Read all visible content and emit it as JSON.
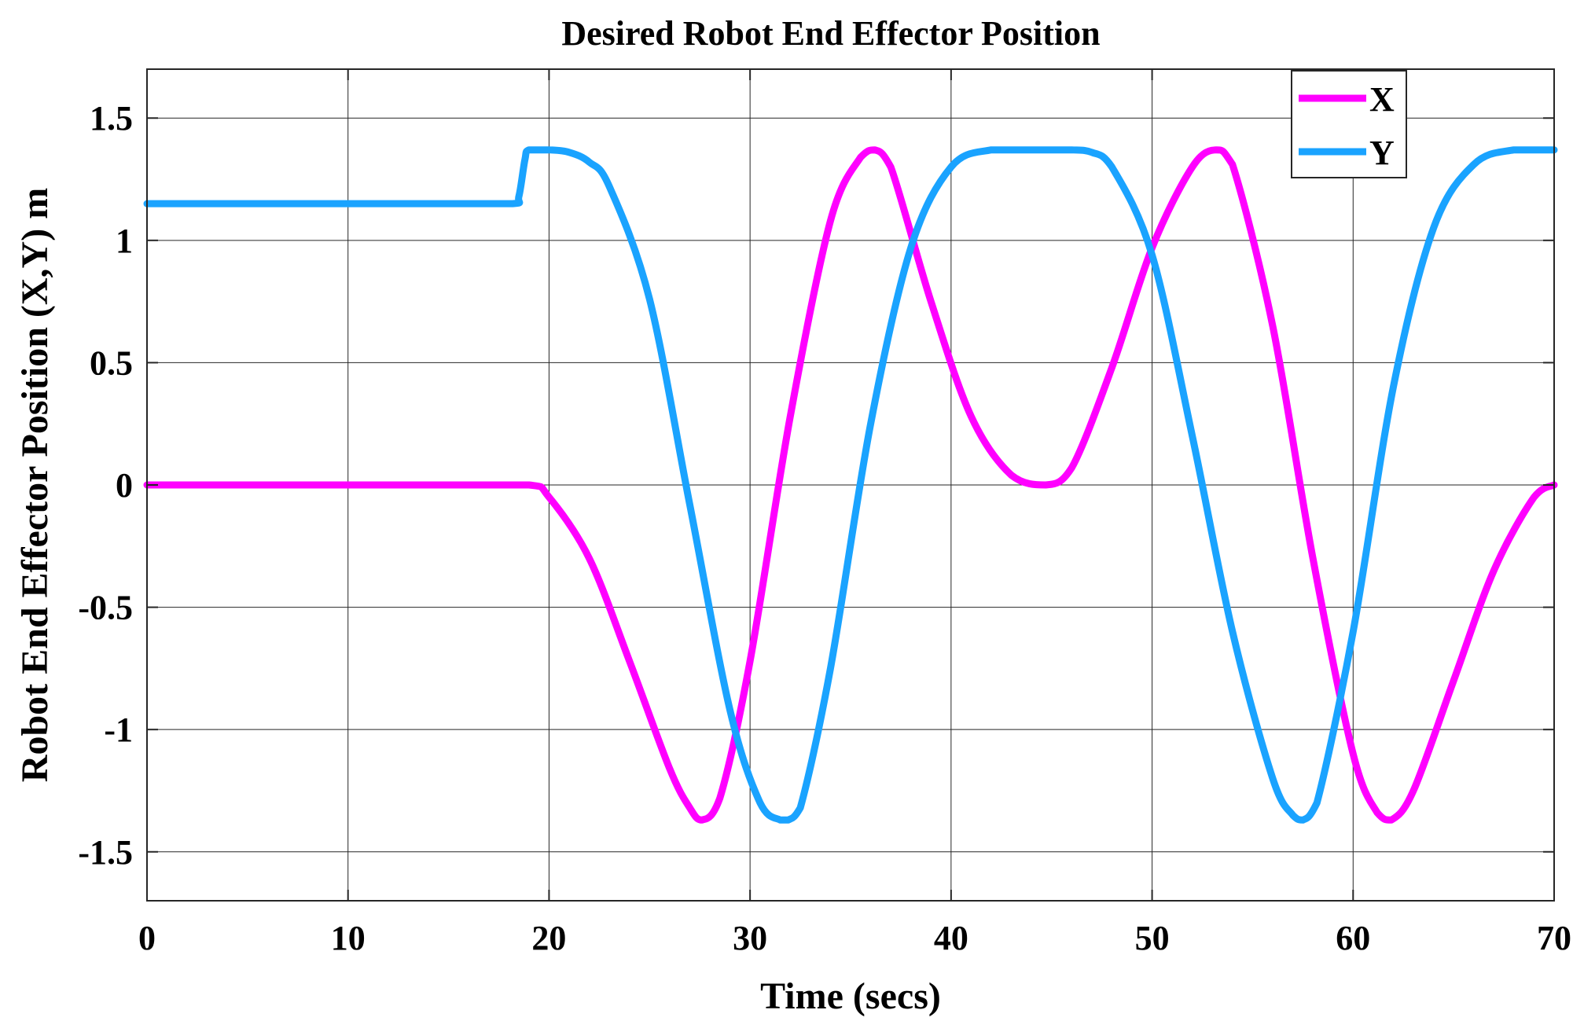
{
  "chart_data": {
    "type": "line",
    "title": "Desired Robot End Effector Position",
    "xlabel": "Time (secs)",
    "ylabel": "Robot End Effector Position (X,Y) m",
    "xlim": [
      0,
      70
    ],
    "ylim": [
      -1.7,
      1.7
    ],
    "xticks": [
      0,
      10,
      20,
      30,
      40,
      50,
      60,
      70
    ],
    "xtick_labels": [
      "0",
      "10",
      "20",
      "30",
      "40",
      "50",
      "60",
      "70"
    ],
    "yticks": [
      1.5,
      1,
      0.5,
      0,
      -0.5,
      -1,
      -1.5
    ],
    "ytick_labels": [
      "1.5",
      "1",
      "0.5",
      "0",
      "-0.5",
      "-1",
      "-1.5"
    ],
    "grid": true,
    "legend_position": "top-right",
    "series": [
      {
        "name": "X",
        "color": "#ff00ff",
        "x": [
          0,
          5,
          10,
          15,
          19,
          20,
          22,
          24,
          26,
          27,
          27.6,
          28.5,
          30,
          32,
          34,
          35.5,
          36.2,
          37,
          39,
          41,
          43,
          44.7,
          46,
          48,
          50,
          52,
          53.2,
          54,
          56,
          58,
          60,
          61.2,
          61.9,
          63,
          65,
          67,
          69,
          70
        ],
        "y": [
          0,
          0,
          0,
          0,
          0,
          -0.05,
          -0.3,
          -0.72,
          -1.16,
          -1.32,
          -1.37,
          -1.28,
          -0.72,
          0.28,
          1.08,
          1.34,
          1.37,
          1.3,
          0.75,
          0.28,
          0.04,
          0,
          0.07,
          0.48,
          0.97,
          1.3,
          1.37,
          1.31,
          0.65,
          -0.3,
          -1.1,
          -1.34,
          -1.37,
          -1.25,
          -0.8,
          -0.35,
          -0.05,
          0
        ]
      },
      {
        "name": "Y",
        "color": "#1aa3ff",
        "x": [
          0,
          5,
          10,
          15,
          18.2,
          18.5,
          18.8,
          19,
          20,
          21,
          22,
          23,
          25,
          27,
          29,
          30.5,
          31.5,
          31.9,
          32.5,
          34,
          36,
          38,
          40,
          42,
          44,
          46,
          47,
          48,
          50,
          52,
          54,
          56,
          57,
          57.5,
          58.2,
          60,
          62,
          64,
          66,
          68,
          70
        ],
        "y": [
          1.15,
          1.15,
          1.15,
          1.15,
          1.15,
          1.18,
          1.33,
          1.37,
          1.37,
          1.36,
          1.32,
          1.22,
          0.76,
          -0.08,
          -0.92,
          -1.3,
          -1.37,
          -1.37,
          -1.32,
          -0.75,
          0.25,
          0.97,
          1.3,
          1.37,
          1.37,
          1.37,
          1.36,
          1.3,
          0.94,
          0.2,
          -0.6,
          -1.2,
          -1.35,
          -1.37,
          -1.3,
          -0.6,
          0.4,
          1.05,
          1.31,
          1.37,
          1.37
        ]
      }
    ]
  }
}
